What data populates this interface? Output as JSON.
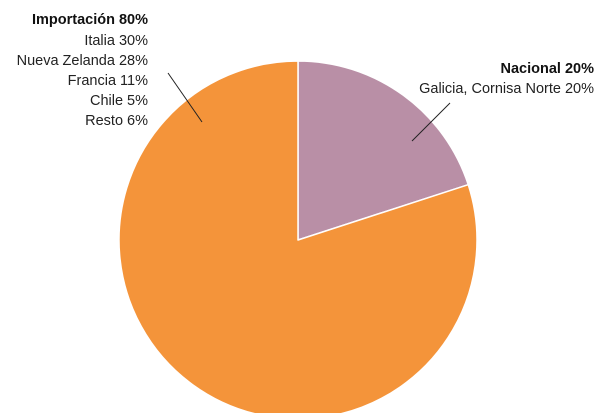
{
  "chart_data": {
    "type": "pie",
    "slices": [
      {
        "name": "Nacional",
        "value": 20,
        "color": "#b98fa6",
        "heading": "Nacional 20%",
        "details": [
          "Galicia, Cornisa Norte 20%"
        ]
      },
      {
        "name": "Importación",
        "value": 80,
        "color": "#f4943a",
        "heading": "Importación 80%",
        "details": [
          "Italia 30%",
          "Nueva Zelanda 28%",
          "Francia 11%",
          "Chile 5%",
          "Resto 6%"
        ]
      }
    ],
    "start_angle": "12 o'clock",
    "direction": "clockwise",
    "legend": "none"
  }
}
